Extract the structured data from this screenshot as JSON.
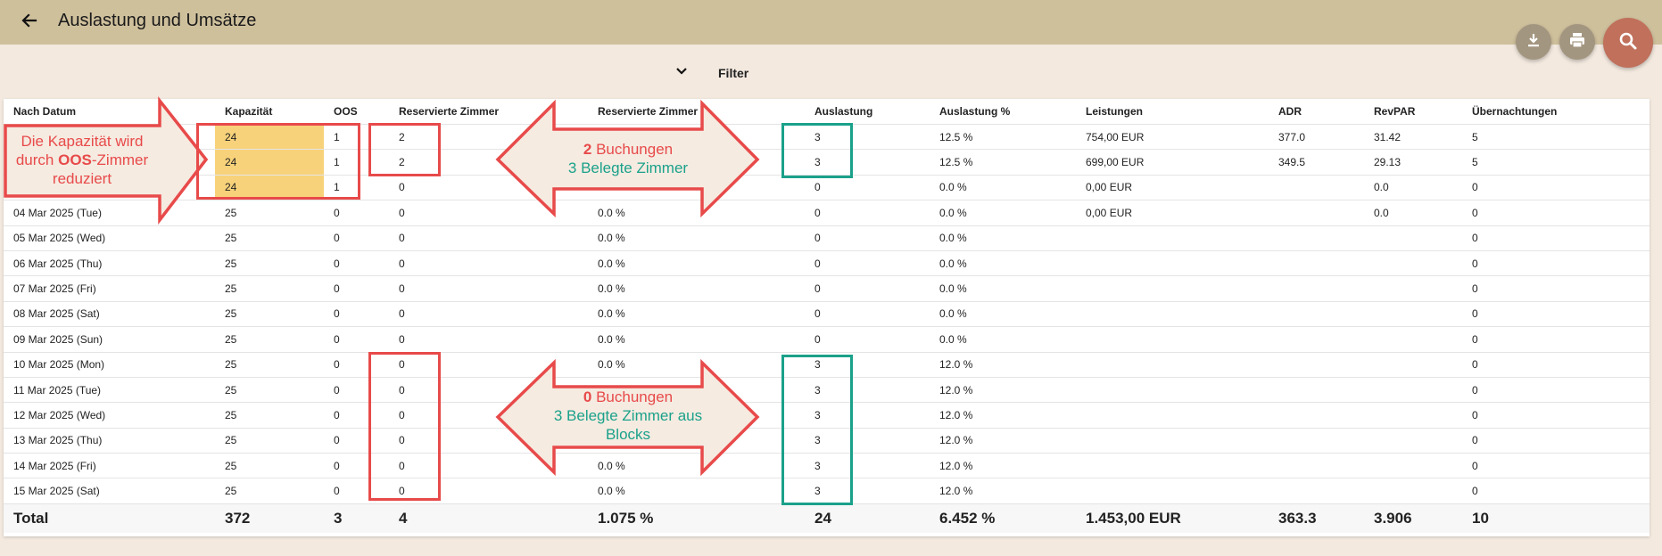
{
  "header": {
    "title": "Auslastung und Umsätze"
  },
  "icons": {
    "back": "arrow-left-icon",
    "download": "download-icon",
    "print": "printer-icon",
    "search": "search-icon",
    "filter": "chevron-down-icon"
  },
  "colors": {
    "appbar": "#cfc09c",
    "background": "#f3e9df",
    "search_fab": "#c0705b",
    "small_fab": "#a39680",
    "highlight": "#f8d27a",
    "annotation_red": "#e84a4a",
    "annotation_teal": "#1ba18a"
  },
  "filter": {
    "label": "Filter"
  },
  "table": {
    "columns": [
      "Nach Datum",
      "Kapazität",
      "OOS",
      "Reservierte Zimmer",
      "Reservierte Zimmer %",
      "Auslastung",
      "Auslastung %",
      "Leistungen",
      "ADR",
      "RevPAR",
      "Übernachtungen"
    ],
    "rows": [
      [
        "",
        "24",
        "1",
        "2",
        "",
        "3",
        "12.5 %",
        "754,00 EUR",
        "377.0",
        "31.42",
        "5"
      ],
      [
        "",
        "24",
        "1",
        "2",
        "",
        "3",
        "12.5 %",
        "699,00 EUR",
        "349.5",
        "29.13",
        "5"
      ],
      [
        "",
        "24",
        "1",
        "0",
        "",
        "0",
        "0.0 %",
        "0,00 EUR",
        "",
        "0.0",
        "0"
      ],
      [
        "04 Mar 2025 (Tue)",
        "25",
        "0",
        "0",
        "0.0 %",
        "0",
        "0.0 %",
        "0,00 EUR",
        "",
        "0.0",
        "0"
      ],
      [
        "05 Mar 2025 (Wed)",
        "25",
        "0",
        "0",
        "0.0 %",
        "0",
        "0.0 %",
        "",
        "",
        "",
        "0"
      ],
      [
        "06 Mar 2025 (Thu)",
        "25",
        "0",
        "0",
        "0.0 %",
        "0",
        "0.0 %",
        "",
        "",
        "",
        "0"
      ],
      [
        "07 Mar 2025 (Fri)",
        "25",
        "0",
        "0",
        "0.0 %",
        "0",
        "0.0 %",
        "",
        "",
        "",
        "0"
      ],
      [
        "08 Mar 2025 (Sat)",
        "25",
        "0",
        "0",
        "0.0 %",
        "0",
        "0.0 %",
        "",
        "",
        "",
        "0"
      ],
      [
        "09 Mar 2025 (Sun)",
        "25",
        "0",
        "0",
        "0.0 %",
        "0",
        "0.0 %",
        "",
        "",
        "",
        "0"
      ],
      [
        "10 Mar 2025 (Mon)",
        "25",
        "0",
        "0",
        "0.0 %",
        "3",
        "12.0 %",
        "",
        "",
        "",
        "0"
      ],
      [
        "11 Mar 2025 (Tue)",
        "25",
        "0",
        "0",
        "0.0 %",
        "3",
        "12.0 %",
        "",
        "",
        "",
        "0"
      ],
      [
        "12 Mar 2025 (Wed)",
        "25",
        "0",
        "0",
        "0.0 %",
        "3",
        "12.0 %",
        "",
        "",
        "",
        "0"
      ],
      [
        "13 Mar 2025 (Thu)",
        "25",
        "0",
        "0",
        "0.0 %",
        "3",
        "12.0 %",
        "",
        "",
        "",
        "0"
      ],
      [
        "14 Mar 2025 (Fri)",
        "25",
        "0",
        "0",
        "0.0 %",
        "3",
        "12.0 %",
        "",
        "",
        "",
        "0"
      ],
      [
        "15 Mar 2025 (Sat)",
        "25",
        "0",
        "0",
        "0.0 %",
        "3",
        "12.0 %",
        "",
        "",
        "",
        "0"
      ]
    ],
    "total": [
      "Total",
      "372",
      "3",
      "4",
      "1.075 %",
      "24",
      "6.452 %",
      "1.453,00 EUR",
      "363.3",
      "3.906",
      "10"
    ]
  },
  "annotations": {
    "capacity_note": {
      "line1": "Die Kapazität wird",
      "line2_prefix": "durch ",
      "line2_bold": "OOS",
      "line2_suffix": "-Zimmer",
      "line3": "reduziert"
    },
    "top_note": {
      "count": "2",
      "bookings": " Buchungen",
      "occupied": "3 Belegte Zimmer"
    },
    "bottom_note": {
      "count": "0",
      "bookings": " Buchungen",
      "occupied_line1": "3 Belegte Zimmer aus",
      "occupied_line2": "Blocks"
    }
  }
}
